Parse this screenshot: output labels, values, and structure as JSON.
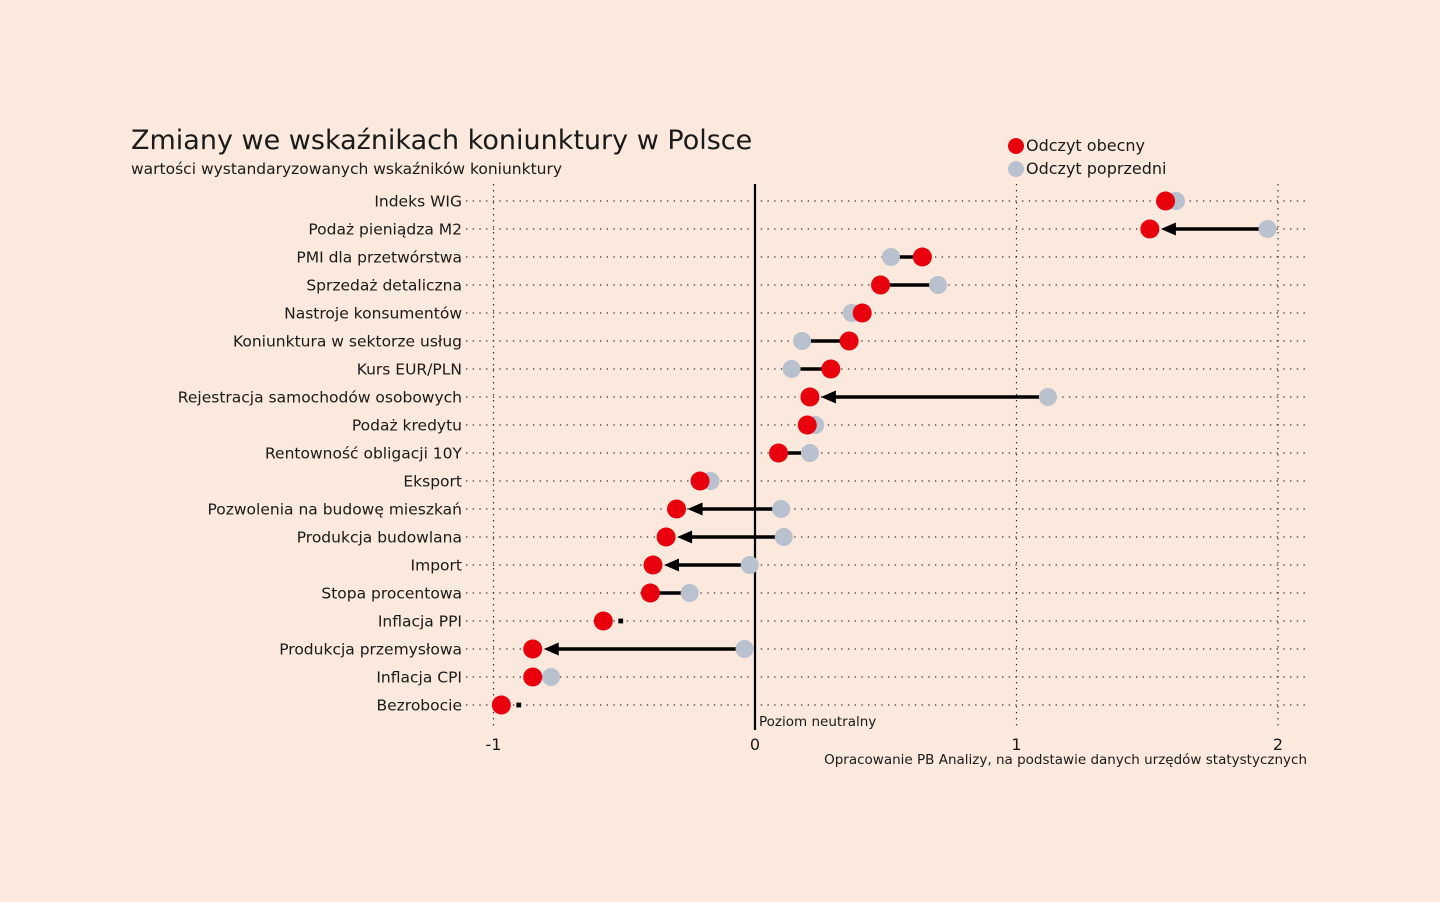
{
  "page": {
    "background": "#fae9dc"
  },
  "header": {
    "title": "Zmiany we wskaźnikach koniunktury w Polsce",
    "subtitle": "wartości wystandaryzowanych wskaźników koniunktury"
  },
  "legend": {
    "current": {
      "label": "Odczyt obecny",
      "color": "#e8000d"
    },
    "previous": {
      "label": "Odczyt poprzedni",
      "color": "#b9c0ce"
    }
  },
  "annotations": {
    "neutral_label": "Poziom neutralny",
    "source": "Opracowanie PB Analizy, na podstawie danych urzędów statystycznych"
  },
  "chart_data": {
    "type": "scatter",
    "variant": "dumbbell-dot-plot",
    "title": "Zmiany we wskaźnikach koniunktury w Polsce",
    "subtitle": "wartości wystandaryzowanych wskaźników koniunktury",
    "xlabel": "",
    "ylabel": "",
    "x_ticks": [
      -1,
      0,
      1,
      2
    ],
    "xlim": [
      -1.13,
      2.12
    ],
    "neutral_line_x": 0,
    "grid": "dotted horizontal row leaders; dotted vertical lines at -1, 1, 2; solid vertical line at 0",
    "legend_position": "top-right",
    "categories": [
      "Indeks WIG",
      "Podaż pieniądza M2",
      "PMI dla przetwórstwa",
      "Sprzedaż detaliczna",
      "Nastroje konsumentów",
      "Koniunktura w sektorze usług",
      "Kurs EUR/PLN",
      "Rejestracja samochodów osobowych",
      "Podaż kredytu",
      "Rentowność obligacji 10Y",
      "Eksport",
      "Pozwolenia na budowę mieszkań",
      "Produkcja budowlana",
      "Import",
      "Stopa procentowa",
      "Inflacja PPI",
      "Produkcja przemysłowa",
      "Inflacja CPI",
      "Bezrobocie"
    ],
    "series": [
      {
        "name": "Odczyt obecny",
        "color": "#e8000d",
        "values": [
          1.57,
          1.51,
          0.64,
          0.48,
          0.41,
          0.36,
          0.29,
          0.21,
          0.2,
          0.09,
          -0.21,
          -0.3,
          -0.34,
          -0.39,
          -0.4,
          -0.58,
          -0.85,
          -0.85,
          -0.97
        ]
      },
      {
        "name": "Odczyt poprzedni",
        "color": "#b9c0ce",
        "values": [
          1.61,
          1.96,
          0.52,
          0.7,
          0.37,
          0.18,
          0.14,
          1.12,
          0.23,
          0.21,
          -0.17,
          0.1,
          0.11,
          -0.02,
          -0.25,
          -0.58,
          -0.04,
          -0.78,
          -0.97
        ]
      }
    ],
    "arrow_rows": [
      false,
      true,
      false,
      false,
      false,
      false,
      false,
      true,
      false,
      false,
      false,
      true,
      true,
      true,
      false,
      false,
      true,
      false,
      false
    ],
    "stub_rows": [
      false,
      false,
      false,
      false,
      false,
      false,
      false,
      false,
      false,
      false,
      false,
      false,
      false,
      false,
      false,
      true,
      false,
      false,
      true
    ],
    "connector_color": "#000000"
  }
}
